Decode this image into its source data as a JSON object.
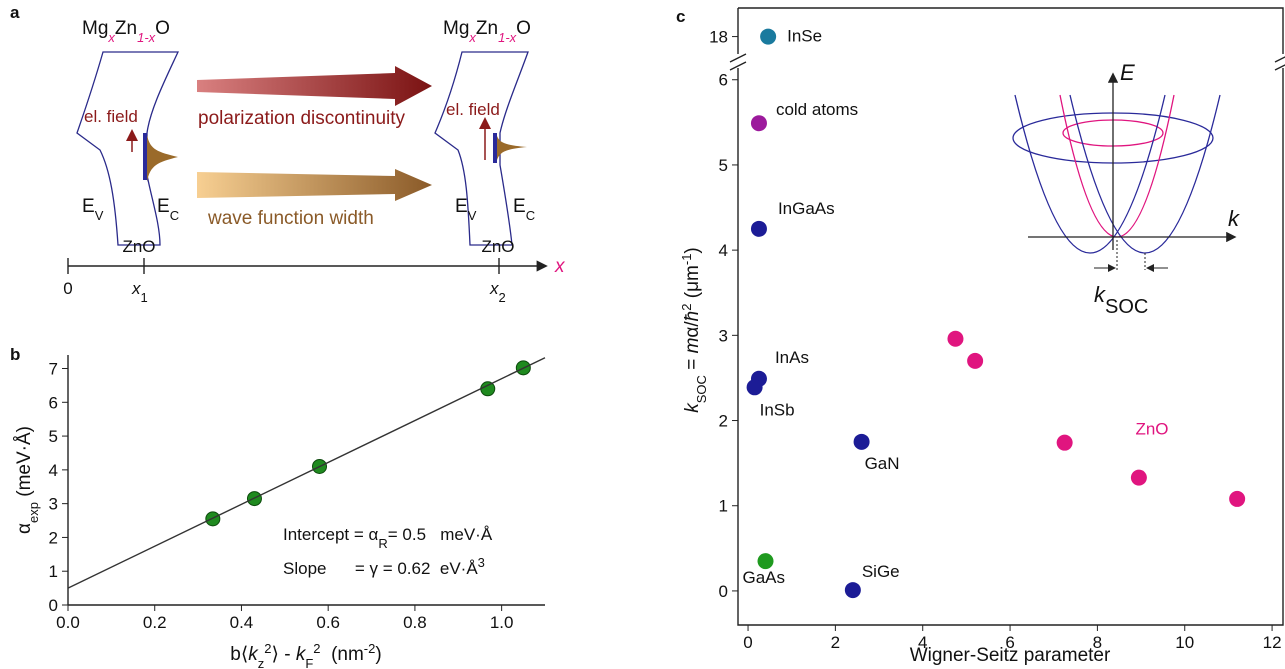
{
  "panel_a": {
    "label": "a",
    "materials": [
      [
        "Mg",
        "x",
        "Zn",
        "1-x",
        "O"
      ],
      [
        "Mg",
        "x",
        "Zn",
        "1-x",
        "O"
      ]
    ],
    "field_labels": [
      "el. field",
      "el. field"
    ],
    "band_labels": [
      [
        "E",
        "V",
        "E",
        "C"
      ],
      [
        "E",
        "V",
        "E",
        "C"
      ]
    ],
    "arrow_labels": [
      "polarization discontinuity",
      "wave function width"
    ],
    "layer_labels": [
      "ZnO",
      "ZnO"
    ],
    "axis_ticks": [
      "0",
      [
        "x",
        "1"
      ],
      [
        "x",
        "2"
      ]
    ],
    "axis_label": "x"
  },
  "chart_data": [
    {
      "type": "scatter",
      "panel": "b",
      "xlabel": [
        "b⟨",
        "k",
        "z",
        "2",
        "⟩ - ",
        "k",
        "F",
        "2",
        "  (nm",
        "-2",
        ")"
      ],
      "ylabel": [
        "α",
        "exp",
        " (meV·Å)"
      ],
      "annotations": [
        [
          "Intercept = α",
          "R",
          "= 0.5   meV·Å"
        ],
        [
          "Slope      = γ = 0.62  eV·Å",
          "3"
        ]
      ],
      "xlim": [
        0,
        1.1
      ],
      "ylim": [
        0,
        7.4
      ],
      "xticks": [
        {
          "value": 0,
          "label": "0.0"
        },
        {
          "value": 0.2,
          "label": "0.2"
        },
        {
          "value": 0.4,
          "label": "0.4"
        },
        {
          "value": 0.6,
          "label": "0.6"
        },
        {
          "value": 0.8,
          "label": "0.8"
        },
        {
          "value": 1,
          "label": "1.0"
        }
      ],
      "yticks": [
        0,
        1,
        2,
        3,
        4,
        5,
        6,
        7
      ],
      "series": [
        {
          "color": "#1f8a1f",
          "x": [
            0.334,
            0.43,
            0.58,
            0.968,
            1.05
          ],
          "values": [
            2.55,
            3.15,
            4.1,
            6.4,
            7.02
          ]
        },
        {
          "type": "line",
          "color": "#333333",
          "x": [
            0,
            1.1
          ],
          "values": [
            0.5,
            7.32
          ]
        }
      ]
    },
    {
      "type": "scatter",
      "panel": "c",
      "xlabel": "Wigner-Seitz parameter",
      "ylabel": [
        "k",
        "SOC",
        " = ",
        "m",
        "α/",
        "ħ",
        "2",
        " (μm",
        "-1",
        ")"
      ],
      "inset_labels": [
        "E",
        "k",
        "k",
        "SOC"
      ],
      "xlim": [
        -0.23,
        12.25
      ],
      "ylim": [
        -0.4,
        18.8
      ],
      "ybreak": [
        6.2,
        17.4
      ],
      "xticks": [
        0,
        2,
        4,
        6,
        8,
        10,
        12
      ],
      "yticks": [
        0,
        1,
        2,
        3,
        4,
        5,
        6,
        18
      ],
      "series": [
        {
          "name": "InSe",
          "color": "#1a7a9e",
          "x": [
            0.46
          ],
          "values": [
            18
          ]
        },
        {
          "name": "cold atoms",
          "color": "#9c1a9c",
          "x": [
            0.25
          ],
          "values": [
            5.49
          ]
        },
        {
          "name": "InGaAs",
          "color": "#1c1c96",
          "x": [
            0.25
          ],
          "values": [
            4.25
          ]
        },
        {
          "name": "InAs",
          "color": "#1c1c96",
          "x": [
            0.25
          ],
          "values": [
            2.49
          ]
        },
        {
          "name": "InSb",
          "color": "#1c1c96",
          "x": [
            0.15
          ],
          "values": [
            2.39
          ]
        },
        {
          "name": "GaN",
          "color": "#1c1c96",
          "x": [
            2.6
          ],
          "values": [
            1.75
          ]
        },
        {
          "name": "SiGe",
          "color": "#1c1c96",
          "x": [
            2.4
          ],
          "values": [
            0.01
          ]
        },
        {
          "name": "GaAs",
          "color": "#1f9a1f",
          "x": [
            0.4
          ],
          "values": [
            0.35
          ]
        },
        {
          "name": "ZnO",
          "color": "#e0157f",
          "x": [
            4.75,
            5.2,
            7.25,
            8.95,
            11.2
          ],
          "values": [
            2.96,
            2.7,
            1.74,
            1.33,
            1.08
          ]
        }
      ]
    }
  ]
}
